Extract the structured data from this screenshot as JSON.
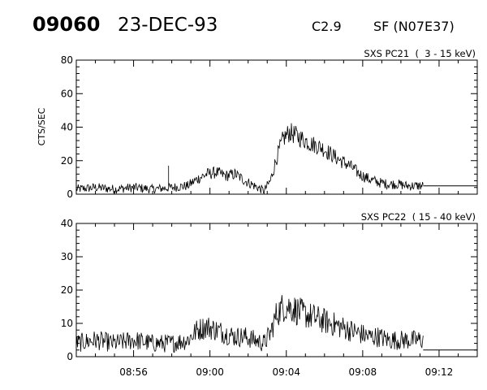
{
  "header": {
    "event_number": "09060",
    "date": "23-DEC-93",
    "goes_class": "C2.9",
    "flare_info": "SF (N07E37)"
  },
  "chart_data": [
    {
      "type": "line",
      "title": "SXS PC21  (  3 - 15 keV)",
      "ylabel": "CTS/SEC",
      "ylim": [
        0,
        80
      ],
      "yticks": [
        0,
        20,
        40,
        60,
        80
      ],
      "xlim": [
        "08:53",
        "09:14"
      ],
      "xticks": [
        "08:56",
        "09:00",
        "09:04",
        "09:08",
        "09:12"
      ],
      "xtick_labels_shown": false,
      "series": [
        {
          "x": [
            "08:53:00",
            "08:54:00",
            "08:55:00",
            "08:56:00",
            "08:57:00",
            "08:58:00",
            "08:58:50",
            "08:59:20",
            "08:59:50",
            "09:00:20",
            "09:00:50",
            "09:01:20",
            "09:01:50",
            "09:02:20",
            "09:02:50",
            "09:03:10",
            "09:03:30",
            "09:03:50",
            "09:04:10",
            "09:04:30",
            "09:04:50",
            "09:05:20",
            "09:05:50",
            "09:06:20",
            "09:06:50",
            "09:07:20",
            "09:07:50",
            "09:08:20",
            "09:08:50",
            "09:09:20",
            "09:09:50",
            "09:10:20",
            "09:10:50",
            "09:11:10"
          ],
          "y": [
            3,
            4,
            3,
            4,
            3,
            4,
            5,
            9,
            12,
            13,
            11,
            12,
            8,
            5,
            2,
            8,
            22,
            33,
            37,
            35,
            33,
            30,
            28,
            24,
            20,
            17,
            12,
            9,
            7,
            6,
            6,
            5,
            5,
            5
          ],
          "noise": 4
        }
      ],
      "post_segment": {
        "x": [
          "09:11:10",
          "09:14:00"
        ],
        "y": 5
      },
      "annotations": [
        {
          "text": "spike",
          "x": "08:57:50",
          "y": 17
        }
      ]
    },
    {
      "type": "line",
      "title": "SXS PC22  ( 15 - 40 keV)",
      "ylim": [
        0,
        40
      ],
      "yticks": [
        0,
        10,
        20,
        30,
        40
      ],
      "xlim": [
        "08:53",
        "09:14"
      ],
      "xticks": [
        "08:56",
        "09:00",
        "09:04",
        "09:08",
        "09:12"
      ],
      "xtick_labels_shown": true,
      "series": [
        {
          "x": [
            "08:53:00",
            "08:54:00",
            "08:55:00",
            "08:56:00",
            "08:57:00",
            "08:58:00",
            "08:58:50",
            "08:59:20",
            "08:59:50",
            "09:00:20",
            "09:00:50",
            "09:01:20",
            "09:01:50",
            "09:02:20",
            "09:02:50",
            "09:03:10",
            "09:03:30",
            "09:03:50",
            "09:04:10",
            "09:04:30",
            "09:04:50",
            "09:05:20",
            "09:05:50",
            "09:06:20",
            "09:06:50",
            "09:07:20",
            "09:07:50",
            "09:08:20",
            "09:08:50",
            "09:09:20",
            "09:09:50",
            "09:10:20",
            "09:10:50",
            "09:11:10"
          ],
          "y": [
            4,
            5,
            4,
            5,
            4,
            4,
            5,
            8,
            9,
            8,
            7,
            6,
            6,
            5,
            4,
            7,
            13,
            15,
            15,
            14,
            13,
            12,
            11,
            10,
            9,
            8,
            7,
            6,
            6,
            5,
            5,
            5,
            5,
            5
          ],
          "noise": 3.5
        }
      ],
      "post_segment": {
        "x": [
          "09:11:10",
          "09:14:00"
        ],
        "y": 2
      }
    }
  ]
}
